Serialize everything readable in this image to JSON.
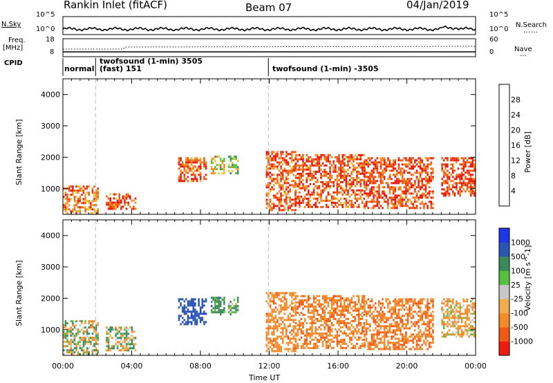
{
  "header": {
    "station": "Rankin Inlet (fitACF)",
    "beam": "Beam 07",
    "date": "04/Jan/2019"
  },
  "strip_labels": {
    "nsky": "N.Sky",
    "nsearch": "N.Search",
    "freq": "Freq.",
    "mhz": "[MHz]",
    "nave": "Nave",
    "cpid": "CPID"
  },
  "strip_ticks": {
    "noise_top_left": "10^5",
    "noise_bottom_left": "10^0",
    "noise_top_right": "10^5",
    "noise_bottom_right": "10^0",
    "freq_top": "18",
    "freq_bottom": "8",
    "nave_top": "60",
    "nave_bottom": "0"
  },
  "cpid_modes": [
    {
      "start_hour": 0.0,
      "label_line1": "",
      "label_line2": "normal"
    },
    {
      "start_hour": 1.9,
      "label_line1": "twofsound (1-min) 3505",
      "label_line2": "(fast) 151"
    },
    {
      "start_hour": 11.95,
      "label_line1": "",
      "label_line2": "twofsound (1-min) -3505"
    }
  ],
  "colors": {
    "power_scale": [
      "#1a1aff",
      "#2a4fb0",
      "#3a8a5a",
      "#55c040",
      "#e8c030",
      "#f58a20",
      "#f05a10",
      "#e81c0c"
    ],
    "velocity_scale": [
      "#ee1c10",
      "#f05a14",
      "#f58a28",
      "#f0ad4e",
      "#c8c8c8",
      "#55c040",
      "#3a8a5a",
      "#2a55b0",
      "#1e35e8"
    ],
    "axis": "#000000",
    "grid_dash": "#bbbbbb"
  },
  "chart_data": [
    {
      "type": "heatmap",
      "title": "",
      "xlabel": "",
      "ylabel": "Slant Range [km]",
      "xlim_hours": [
        0,
        24
      ],
      "ylim_km": [
        180,
        4500
      ],
      "yticks": [
        1000,
        2000,
        3000,
        4000
      ],
      "colorbar": {
        "label": "Power [dB]",
        "ticks": [
          "4",
          "8",
          "12",
          "16",
          "20",
          "24",
          "28"
        ],
        "range": [
          0,
          32
        ]
      },
      "echo_regions": [
        {
          "h0": 0.0,
          "h1": 2.0,
          "r0": 200,
          "r1": 1100,
          "value": 24
        },
        {
          "h0": 2.5,
          "h1": 4.2,
          "r0": 350,
          "r1": 850,
          "value": 26
        },
        {
          "h0": 6.7,
          "h1": 8.3,
          "r0": 1250,
          "r1": 2000,
          "value": 26
        },
        {
          "h0": 8.6,
          "h1": 9.4,
          "r0": 1500,
          "r1": 2050,
          "value": 18
        },
        {
          "h0": 9.6,
          "h1": 10.2,
          "r0": 1500,
          "r1": 2050,
          "value": 14
        },
        {
          "h0": 11.8,
          "h1": 13.5,
          "r0": 300,
          "r1": 2200,
          "value": 26
        },
        {
          "h0": 13.5,
          "h1": 17.5,
          "r0": 400,
          "r1": 2100,
          "value": 26
        },
        {
          "h0": 17.5,
          "h1": 21.5,
          "r0": 400,
          "r1": 2000,
          "value": 27
        },
        {
          "h0": 22.0,
          "h1": 23.9,
          "r0": 800,
          "r1": 2000,
          "value": 28
        }
      ]
    },
    {
      "type": "heatmap",
      "title": "",
      "xlabel": "Time UT",
      "ylabel": "Slant Range [km]",
      "xlim_hours": [
        0,
        24
      ],
      "ylim_km": [
        180,
        4500
      ],
      "xticks": [
        "00:00",
        "04:00",
        "08:00",
        "12:00",
        "16:00",
        "20:00",
        "00:00"
      ],
      "yticks": [
        1000,
        2000,
        3000,
        4000
      ],
      "colorbar": {
        "label": "Velocity [m s^-1]",
        "ticks": [
          "-1000",
          "-500",
          "-100",
          "-25",
          "25",
          "100",
          "500",
          "1000"
        ],
        "range": [
          -1200,
          1200
        ]
      },
      "echo_regions": [
        {
          "h0": 0.0,
          "h1": 2.0,
          "r0": 200,
          "r1": 1300,
          "value": 10
        },
        {
          "h0": 2.5,
          "h1": 4.2,
          "r0": 350,
          "r1": 1100,
          "value": 20
        },
        {
          "h0": 6.7,
          "h1": 8.3,
          "r0": 1200,
          "r1": 2000,
          "value": 800
        },
        {
          "h0": 8.6,
          "h1": 9.4,
          "r0": 1500,
          "r1": 2050,
          "value": 300
        },
        {
          "h0": 9.6,
          "h1": 10.2,
          "r0": 1500,
          "r1": 2050,
          "value": 200
        },
        {
          "h0": 11.8,
          "h1": 13.5,
          "r0": 300,
          "r1": 2200,
          "value": -300
        },
        {
          "h0": 13.5,
          "h1": 17.5,
          "r0": 400,
          "r1": 2100,
          "value": -400
        },
        {
          "h0": 17.5,
          "h1": 21.5,
          "r0": 400,
          "r1": 2000,
          "value": -450
        },
        {
          "h0": 22.0,
          "h1": 23.9,
          "r0": 800,
          "r1": 2000,
          "value": -150
        }
      ]
    }
  ]
}
